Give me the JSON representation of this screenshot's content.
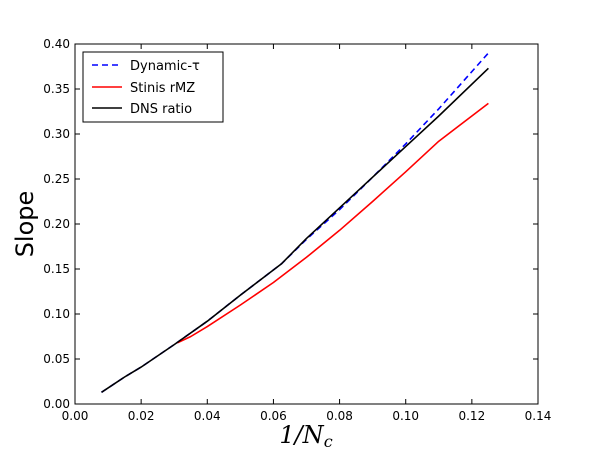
{
  "chart_data": {
    "type": "line",
    "xlabel_main": "1/N",
    "xlabel_sub": "c",
    "ylabel": "Slope",
    "xlim": [
      0.0,
      0.14
    ],
    "ylim": [
      0.0,
      0.4
    ],
    "x_ticks": [
      "0.00",
      "0.02",
      "0.04",
      "0.06",
      "0.08",
      "0.10",
      "0.12",
      "0.14"
    ],
    "y_ticks": [
      "0.00",
      "0.05",
      "0.10",
      "0.15",
      "0.20",
      "0.25",
      "0.30",
      "0.35",
      "0.40"
    ],
    "grid": false,
    "legend_position": "top-left",
    "series": [
      {
        "name": "Dynamic-τ",
        "color": "#0000ff",
        "dash": "dashed",
        "x": [
          0.008,
          0.015,
          0.02,
          0.03,
          0.04,
          0.05,
          0.0625,
          0.07,
          0.08,
          0.09,
          0.1,
          0.11,
          0.125
        ],
        "y": [
          0.013,
          0.03,
          0.041,
          0.066,
          0.092,
          0.121,
          0.156,
          0.183,
          0.216,
          0.252,
          0.289,
          0.328,
          0.39
        ]
      },
      {
        "name": "Stinis rMZ",
        "color": "#ff0000",
        "dash": "solid",
        "x": [
          0.031,
          0.035,
          0.04,
          0.05,
          0.06,
          0.07,
          0.08,
          0.09,
          0.1,
          0.11,
          0.125
        ],
        "y": [
          0.068,
          0.075,
          0.086,
          0.11,
          0.135,
          0.163,
          0.193,
          0.225,
          0.258,
          0.292,
          0.334
        ]
      },
      {
        "name": "DNS ratio",
        "color": "#000000",
        "dash": "solid",
        "x": [
          0.008,
          0.015,
          0.02,
          0.03,
          0.04,
          0.05,
          0.0625,
          0.07,
          0.08,
          0.09,
          0.1,
          0.11,
          0.125
        ],
        "y": [
          0.013,
          0.03,
          0.041,
          0.066,
          0.092,
          0.121,
          0.156,
          0.184,
          0.218,
          0.252,
          0.286,
          0.32,
          0.373
        ]
      }
    ]
  }
}
